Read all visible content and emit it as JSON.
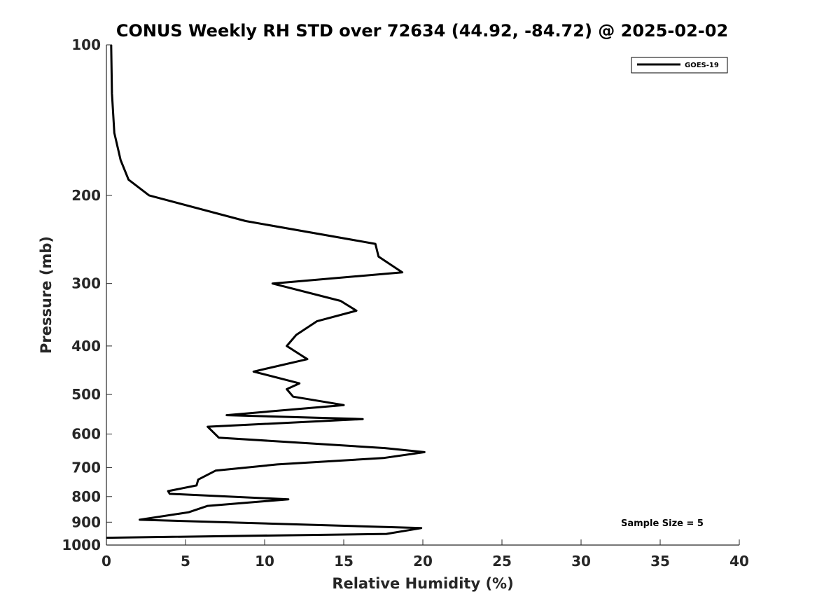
{
  "chart_data": {
    "type": "line",
    "title": "CONUS Weekly RH STD over 72634 (44.92, -84.72) @ 2025-02-02",
    "xlabel": "Relative Humidity (%)",
    "ylabel": "Pressure (mb)",
    "xlim": [
      0,
      40
    ],
    "ylim": [
      100,
      1000
    ],
    "y_scale": "log",
    "y_reversed": true,
    "x_ticks": [
      "0",
      "5",
      "10",
      "15",
      "20",
      "25",
      "30",
      "35",
      "40"
    ],
    "y_ticks": [
      "100",
      "200",
      "300",
      "400",
      "500",
      "600",
      "700",
      "800",
      "900",
      "1000"
    ],
    "grid": false,
    "legend_position": "top-right",
    "annotation": "Sample Size = 5",
    "series": [
      {
        "name": "GOES-19",
        "color": "#000000",
        "points": [
          [
            0.3,
            100
          ],
          [
            0.35,
            125
          ],
          [
            0.5,
            150
          ],
          [
            0.9,
            170
          ],
          [
            1.4,
            186
          ],
          [
            2.7,
            200
          ],
          [
            8.8,
            225
          ],
          [
            17.0,
            250
          ],
          [
            17.2,
            265
          ],
          [
            18.7,
            285
          ],
          [
            10.5,
            300
          ],
          [
            14.8,
            325
          ],
          [
            15.8,
            340
          ],
          [
            13.3,
            357
          ],
          [
            12.0,
            380
          ],
          [
            11.4,
            400
          ],
          [
            12.7,
            425
          ],
          [
            9.3,
            450
          ],
          [
            12.2,
            475
          ],
          [
            11.4,
            488
          ],
          [
            11.8,
            505
          ],
          [
            15.0,
            525
          ],
          [
            7.6,
            550
          ],
          [
            16.2,
            560
          ],
          [
            6.4,
            580
          ],
          [
            7.1,
            610
          ],
          [
            17.6,
            640
          ],
          [
            20.1,
            652
          ],
          [
            17.5,
            670
          ],
          [
            10.8,
            690
          ],
          [
            6.9,
            710
          ],
          [
            5.8,
            740
          ],
          [
            5.7,
            760
          ],
          [
            3.9,
            780
          ],
          [
            4.0,
            790
          ],
          [
            11.5,
            810
          ],
          [
            6.4,
            835
          ],
          [
            5.2,
            860
          ],
          [
            2.1,
            890
          ],
          [
            19.9,
            925
          ],
          [
            17.7,
            950
          ],
          [
            0.0,
            967
          ]
        ]
      }
    ]
  }
}
